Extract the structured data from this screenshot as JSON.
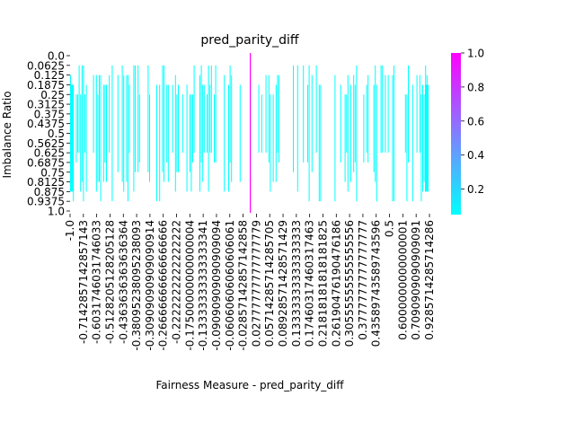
{
  "chart_data": {
    "type": "heatmap",
    "title": "pred_parity_diff",
    "xlabel": "Fairness Measure - pred_parity_diff",
    "ylabel": "Imbalance Ratio",
    "y_ticks": [
      "0.0",
      "0.0625",
      "0.125",
      "0.1875",
      "0.25",
      "0.3125",
      "0.375",
      "0.4375",
      "0.5",
      "0.5625",
      "0.625",
      "0.6875",
      "0.75",
      "0.8125",
      "0.875",
      "0.9375",
      "1.0"
    ],
    "x_ticks": [
      "-1.0",
      "-0.7142857142857143",
      "-0.6031746031746033",
      "-0.5128205128205128",
      "-0.4363636363636364",
      "-0.38095238095238093",
      "-0.30909090909090914",
      "-0.26666666666666666",
      "-0.2222222222222222",
      "-0.17500000000000004",
      "-0.13333333333333341",
      "-0.09090909090909094",
      "-0.06060606060606061",
      "-0.02857142857142858",
      "0.02777777777777779",
      "0.05714285714285705",
      "0.08928571428571429",
      "0.13333333333333333",
      "0.17460317460317463",
      "0.21818181818181825",
      "0.26190476190476186",
      "0.30555555555555556",
      "0.3777777777777777",
      "0.43589743589743596",
      "0.5",
      "0.6000000000000001",
      "0.7090909090909091",
      "0.9285714285714286"
    ],
    "colorbar": {
      "min": 0.05,
      "max": 1.0,
      "ticks": [
        "0.2",
        "0.4",
        "0.6",
        "0.8",
        "1.0"
      ],
      "tick_values": [
        0.2,
        0.4,
        0.6,
        0.8,
        1.0
      ],
      "colormap": "cool",
      "colors": [
        "#00ffff",
        "#ff00ff"
      ]
    },
    "cells": {
      "mostly_cyan_low_density": true,
      "center_column_value": 1.0,
      "center_column_x": "0.0",
      "note_values": "sparse cells with low counts (~0.05-0.1); single column at 0.0 with high value spanning imbalance 0.0 to 1.0"
    }
  }
}
